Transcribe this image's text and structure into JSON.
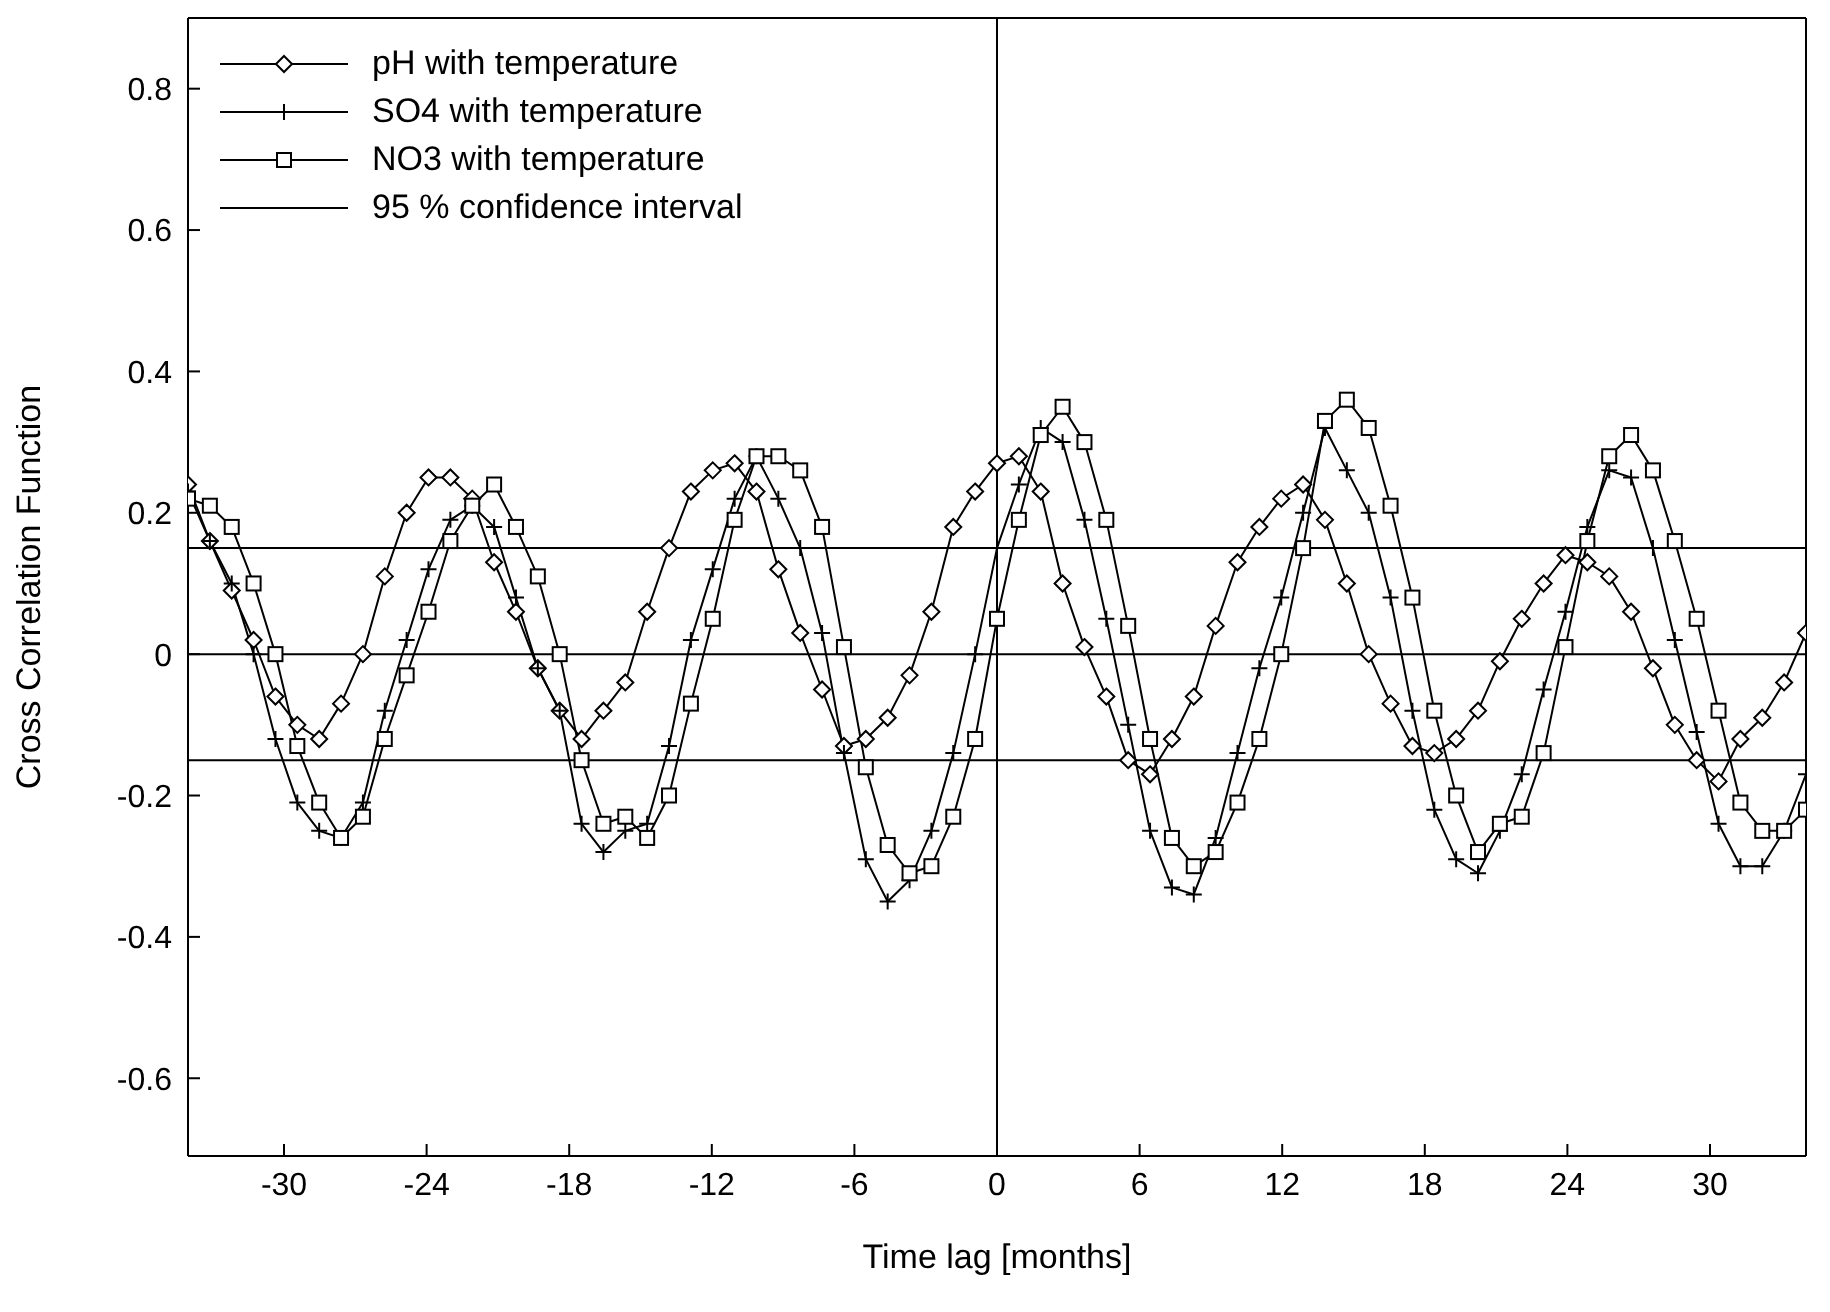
{
  "chart_data": {
    "type": "line",
    "xlabel": "Time lag [months]",
    "ylabel": "Cross Correlation Function",
    "x": [
      -34.04,
      -33.12,
      -32.2,
      -31.28,
      -30.36,
      -29.44,
      -28.52,
      -27.6,
      -26.68,
      -25.76,
      -24.84,
      -23.92,
      -23,
      -22.08,
      -21.16,
      -20.24,
      -19.32,
      -18.4,
      -17.48,
      -16.56,
      -15.64,
      -14.72,
      -13.8,
      -12.88,
      -11.96,
      -11.04,
      -10.12,
      -9.2,
      -8.28,
      -7.36,
      -6.44,
      -5.52,
      -4.6,
      -3.68,
      -2.76,
      -1.84,
      -0.92,
      0,
      0.92,
      1.84,
      2.76,
      3.68,
      4.6,
      5.52,
      6.44,
      7.36,
      8.28,
      9.2,
      10.12,
      11.04,
      11.96,
      12.88,
      13.8,
      14.72,
      15.64,
      16.56,
      17.48,
      18.4,
      19.32,
      20.24,
      21.16,
      22.08,
      23,
      23.92,
      24.84,
      25.76,
      26.68,
      27.6,
      28.52,
      29.44,
      30.36,
      31.28,
      32.2,
      33.12,
      34.04
    ],
    "series": [
      {
        "name": "pH with temperature",
        "color": "#000000",
        "marker": "diamond",
        "values": [
          0.24,
          0.16,
          0.09,
          0.02,
          -0.06,
          -0.1,
          -0.12,
          -0.07,
          0,
          0.11,
          0.2,
          0.25,
          0.25,
          0.22,
          0.13,
          0.06,
          -0.02,
          -0.08,
          -0.12,
          -0.08,
          -0.04,
          0.06,
          0.15,
          0.23,
          0.26,
          0.27,
          0.23,
          0.12,
          0.03,
          -0.05,
          -0.13,
          -0.12,
          -0.09,
          -0.03,
          0.06,
          0.18,
          0.23,
          0.27,
          0.28,
          0.23,
          0.1,
          0.01,
          -0.06,
          -0.15,
          -0.17,
          -0.12,
          -0.06,
          0.04,
          0.13,
          0.18,
          0.22,
          0.24,
          0.19,
          0.1,
          0,
          -0.07,
          -0.13,
          -0.14,
          -0.12,
          -0.08,
          -0.01,
          0.05,
          0.1,
          0.14,
          0.13,
          0.11,
          0.06,
          -0.02,
          -0.1,
          -0.15,
          -0.18,
          -0.12,
          -0.09,
          -0.04,
          0.03
        ]
      },
      {
        "name": "SO4 with temperature",
        "color": "#000000",
        "marker": "cross",
        "values": [
          0.23,
          0.16,
          0.1,
          0,
          -0.12,
          -0.21,
          -0.25,
          -0.26,
          -0.21,
          -0.08,
          0.02,
          0.12,
          0.19,
          0.21,
          0.18,
          0.08,
          -0.02,
          -0.08,
          -0.24,
          -0.28,
          -0.25,
          -0.24,
          -0.13,
          0.02,
          0.12,
          0.22,
          0.28,
          0.22,
          0.15,
          0.03,
          -0.14,
          -0.29,
          -0.35,
          -0.32,
          -0.25,
          -0.14,
          0,
          0.15,
          0.24,
          0.32,
          0.3,
          0.19,
          0.05,
          -0.1,
          -0.25,
          -0.33,
          -0.34,
          -0.26,
          -0.14,
          -0.02,
          0.08,
          0.2,
          0.32,
          0.26,
          0.2,
          0.08,
          -0.08,
          -0.22,
          -0.29,
          -0.31,
          -0.25,
          -0.17,
          -0.05,
          0.06,
          0.18,
          0.26,
          0.25,
          0.15,
          0.02,
          -0.11,
          -0.24,
          -0.3,
          -0.3,
          -0.25,
          -0.17
        ]
      },
      {
        "name": "NO3 with temperature",
        "color": "#000000",
        "marker": "square",
        "values": [
          0.22,
          0.21,
          0.18,
          0.1,
          0,
          -0.13,
          -0.21,
          -0.26,
          -0.23,
          -0.12,
          -0.03,
          0.06,
          0.16,
          0.21,
          0.24,
          0.18,
          0.11,
          0,
          -0.15,
          -0.24,
          -0.23,
          -0.26,
          -0.2,
          -0.07,
          0.05,
          0.19,
          0.28,
          0.28,
          0.26,
          0.18,
          0.01,
          -0.16,
          -0.27,
          -0.31,
          -0.3,
          -0.23,
          -0.12,
          0.05,
          0.19,
          0.31,
          0.35,
          0.3,
          0.19,
          0.04,
          -0.12,
          -0.26,
          -0.3,
          -0.28,
          -0.21,
          -0.12,
          0,
          0.15,
          0.33,
          0.36,
          0.32,
          0.21,
          0.08,
          -0.08,
          -0.2,
          -0.28,
          -0.24,
          -0.23,
          -0.14,
          0.01,
          0.16,
          0.28,
          0.31,
          0.26,
          0.16,
          0.05,
          -0.08,
          -0.21,
          -0.25,
          -0.25,
          -0.22
        ]
      }
    ],
    "ref_lines": [
      {
        "axis": "y",
        "value": 0.15,
        "label": "95 % confidence interval",
        "color": "#000000"
      },
      {
        "axis": "y",
        "value": -0.15,
        "color": "#000000"
      },
      {
        "axis": "y",
        "value": 0,
        "color": "#000000"
      },
      {
        "axis": "x",
        "value": 0,
        "color": "#000000"
      }
    ],
    "xlim": [
      -34.04,
      34.04
    ],
    "xticks": [
      -30,
      -24,
      -18,
      -12,
      -6,
      0,
      6,
      12,
      18,
      24,
      30
    ],
    "ylim": [
      -0.71,
      0.9
    ],
    "yticks": [
      -0.6,
      -0.4,
      -0.2,
      0,
      0.2,
      0.4,
      0.6,
      0.8
    ],
    "grid": false,
    "legend": "top left",
    "line_style": "solid"
  }
}
